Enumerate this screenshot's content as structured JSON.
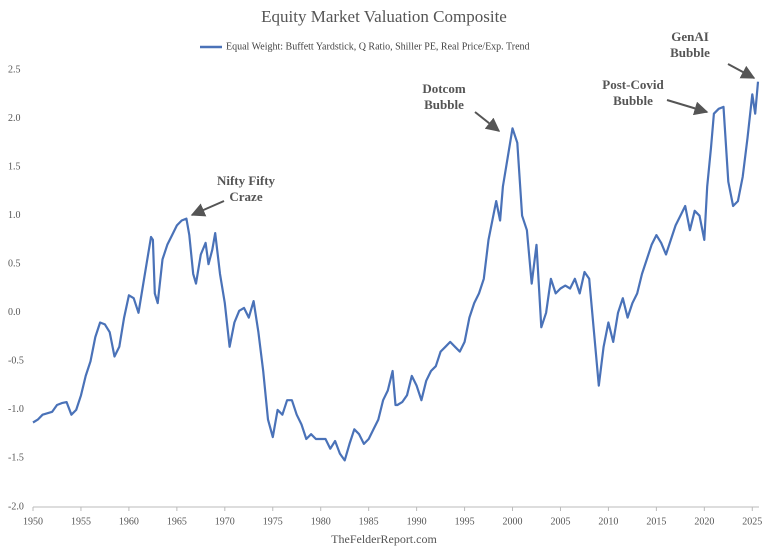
{
  "chart_data": {
    "type": "line",
    "title": "Equity Market Valuation Composite",
    "source": "TheFelderReport.com",
    "x": [
      1950,
      1950.5,
      1951,
      1952,
      1952.5,
      1953,
      1953.5,
      1954,
      1954.5,
      1955,
      1955.5,
      1956,
      1956.5,
      1957,
      1957.5,
      1958,
      1958.5,
      1959,
      1959.5,
      1960,
      1960.5,
      1961,
      1961.5,
      1962,
      1962.3,
      1962.5,
      1962.7,
      1963,
      1963.5,
      1964,
      1964.5,
      1965,
      1965.5,
      1966,
      1966.3,
      1966.7,
      1967,
      1967.5,
      1968,
      1968.3,
      1968.7,
      1969,
      1969.5,
      1970,
      1970.5,
      1971,
      1971.5,
      1972,
      1972.5,
      1973,
      1973.5,
      1974,
      1974.5,
      1975,
      1975.5,
      1976,
      1976.5,
      1977,
      1977.5,
      1978,
      1978.5,
      1979,
      1979.5,
      1980,
      1980.5,
      1981,
      1981.5,
      1982,
      1982.5,
      1983,
      1983.5,
      1984,
      1984.5,
      1985,
      1985.5,
      1986,
      1986.5,
      1987,
      1987.5,
      1987.8,
      1988,
      1988.5,
      1989,
      1989.5,
      1990,
      1990.5,
      1991,
      1991.5,
      1992,
      1992.5,
      1993,
      1993.5,
      1994,
      1994.5,
      1995,
      1995.5,
      1996,
      1996.5,
      1997,
      1997.5,
      1998,
      1998.3,
      1998.7,
      1999,
      1999.5,
      2000,
      2000.5,
      2001,
      2001.5,
      2002,
      2002.5,
      2003,
      2003.5,
      2004,
      2004.5,
      2005,
      2005.5,
      2006,
      2006.5,
      2007,
      2007.5,
      2008,
      2008.5,
      2009,
      2009.5,
      2010,
      2010.5,
      2011,
      2011.5,
      2012,
      2012.5,
      2013,
      2013.5,
      2014,
      2014.5,
      2015,
      2015.5,
      2016,
      2016.5,
      2017,
      2017.5,
      2018,
      2018.5,
      2019,
      2019.5,
      2020,
      2020.3,
      2020.7,
      2021,
      2021.5,
      2022,
      2022.5,
      2023,
      2023.5,
      2024,
      2024.5,
      2025,
      2025.3,
      2025.6
    ],
    "series": [
      {
        "name": "Equal Weight: Buffett Yardstick, Q Ratio, Shiller PE, Real Price/Exp. Trend",
        "color": "#4a72b8",
        "values": [
          -1.13,
          -1.1,
          -1.05,
          -1.02,
          -0.95,
          -0.93,
          -0.92,
          -1.05,
          -1.0,
          -0.85,
          -0.65,
          -0.5,
          -0.25,
          -0.1,
          -0.12,
          -0.2,
          -0.45,
          -0.35,
          -0.05,
          0.18,
          0.15,
          0.0,
          0.3,
          0.6,
          0.78,
          0.75,
          0.2,
          0.1,
          0.55,
          0.7,
          0.8,
          0.9,
          0.95,
          0.97,
          0.8,
          0.4,
          0.3,
          0.6,
          0.72,
          0.5,
          0.65,
          0.82,
          0.4,
          0.1,
          -0.35,
          -0.1,
          0.02,
          0.05,
          -0.05,
          0.12,
          -0.2,
          -0.6,
          -1.1,
          -1.28,
          -1.0,
          -1.05,
          -0.9,
          -0.9,
          -1.05,
          -1.15,
          -1.3,
          -1.25,
          -1.3,
          -1.3,
          -1.3,
          -1.4,
          -1.32,
          -1.45,
          -1.52,
          -1.35,
          -1.2,
          -1.25,
          -1.35,
          -1.3,
          -1.2,
          -1.1,
          -0.9,
          -0.8,
          -0.6,
          -0.95,
          -0.95,
          -0.92,
          -0.85,
          -0.65,
          -0.75,
          -0.9,
          -0.7,
          -0.6,
          -0.55,
          -0.4,
          -0.35,
          -0.3,
          -0.35,
          -0.4,
          -0.3,
          -0.05,
          0.1,
          0.2,
          0.35,
          0.75,
          1.0,
          1.15,
          0.95,
          1.3,
          1.6,
          1.9,
          1.75,
          1.0,
          0.85,
          0.3,
          0.7,
          -0.15,
          0.0,
          0.35,
          0.2,
          0.25,
          0.28,
          0.25,
          0.35,
          0.2,
          0.42,
          0.35,
          -0.2,
          -0.75,
          -0.35,
          -0.1,
          -0.3,
          0.0,
          0.15,
          -0.05,
          0.1,
          0.2,
          0.4,
          0.55,
          0.7,
          0.8,
          0.72,
          0.6,
          0.75,
          0.9,
          1.0,
          1.1,
          0.85,
          1.05,
          1.0,
          0.75,
          1.3,
          1.7,
          2.05,
          2.1,
          2.12,
          1.35,
          1.1,
          1.15,
          1.4,
          1.8,
          2.25,
          2.05,
          2.38
        ]
      }
    ],
    "xlim": [
      1950,
      2025.7
    ],
    "xticks": [
      1950,
      1955,
      1960,
      1965,
      1970,
      1975,
      1980,
      1985,
      1990,
      1995,
      2000,
      2005,
      2010,
      2015,
      2020,
      2025
    ],
    "ylim": [
      -2,
      2.5
    ],
    "yticks": [
      2.5,
      {
        "value": 2,
        "label": "2.0"
      },
      1.5,
      {
        "value": 1,
        "label": "1.0"
      },
      0.5,
      {
        "value": 0,
        "label": "0.0"
      },
      -0.5,
      {
        "value": -1,
        "label": "-1.0"
      },
      -1.5,
      {
        "value": -2,
        "label": "-2.0"
      }
    ],
    "annotations": [
      {
        "lines": [
          "Nifty Fifty",
          "Craze"
        ]
      },
      {
        "lines": [
          "Dotcom",
          "Bubble"
        ]
      },
      {
        "lines": [
          "Post-Covid",
          "Bubble"
        ]
      },
      {
        "lines": [
          "GenAI",
          "Bubble"
        ]
      }
    ]
  }
}
